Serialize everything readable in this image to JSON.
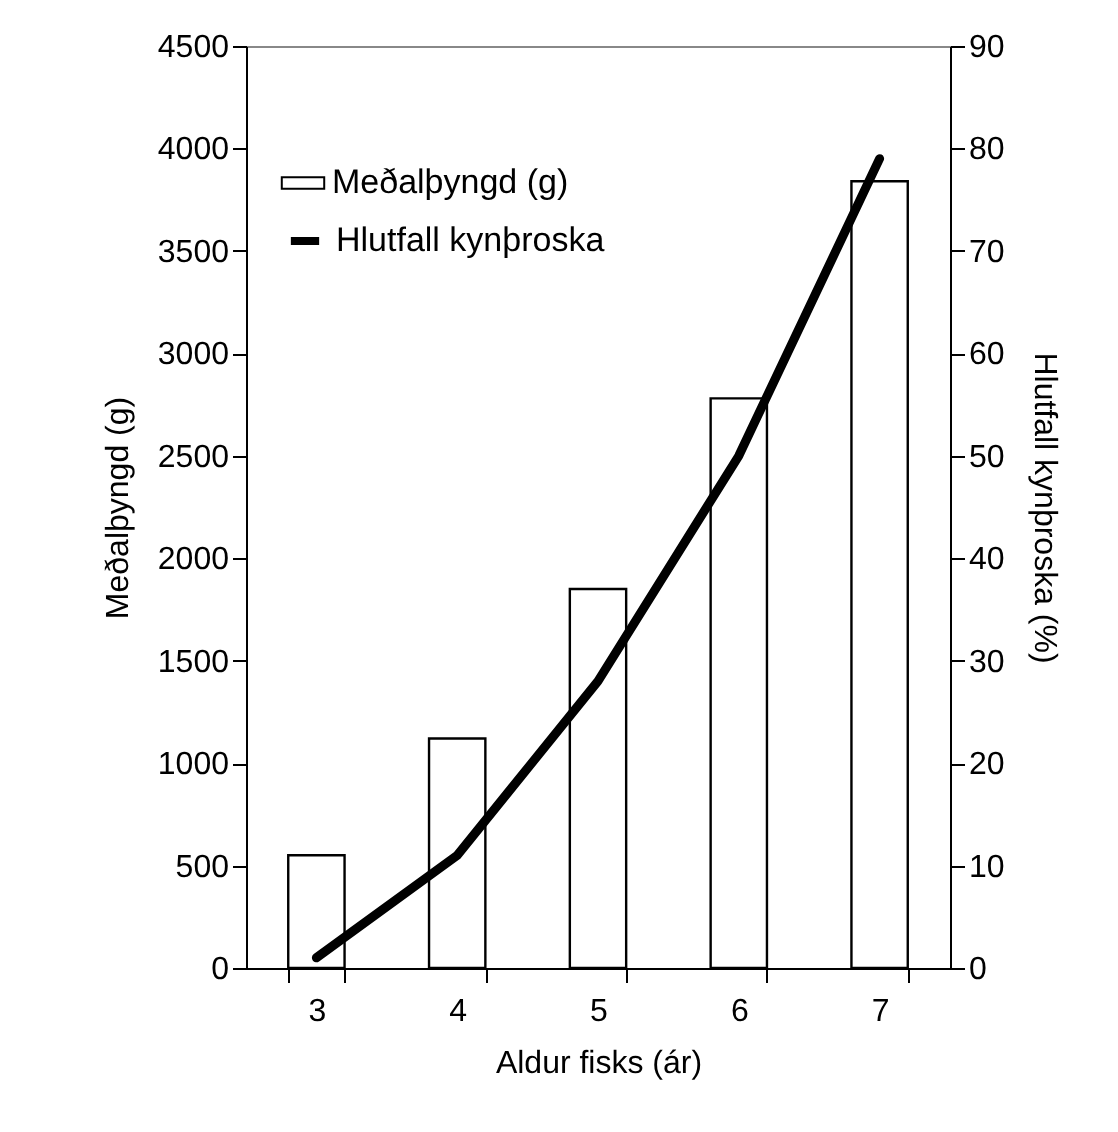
{
  "chart_data": {
    "type": "bar",
    "xlabel": "Aldur fisks (ár)",
    "ylabel": "Meðalþyngd (g)",
    "y2label": "Hlutfall kynþroska (%)",
    "categories": [
      "3",
      "4",
      "5",
      "6",
      "7"
    ],
    "series": [
      {
        "name": "Meðalþyngd (g)",
        "color": "#ffffff",
        "values": [
          550,
          1120,
          1850,
          2780,
          3840
        ]
      },
      {
        "name": "Hlutfall kynþroska",
        "type": "line",
        "axis": "y2",
        "color": "#000000",
        "values": [
          1,
          11,
          28,
          50,
          79
        ]
      }
    ],
    "ylim": [
      0,
      4500
    ],
    "yticks": [
      0,
      500,
      1000,
      1500,
      2000,
      2500,
      3000,
      3500,
      4000,
      4500
    ],
    "y2lim": [
      0,
      90
    ],
    "y2ticks": [
      0,
      10,
      20,
      30,
      40,
      50,
      60,
      70,
      80,
      90
    ],
    "grid": false,
    "legend": "top left"
  }
}
